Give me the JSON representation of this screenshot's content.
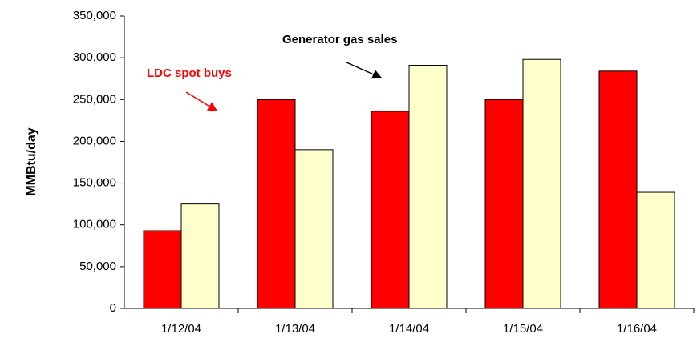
{
  "chart_data": {
    "type": "bar",
    "y_label": "MMBtu/day",
    "categories": [
      "1/12/04",
      "1/13/04",
      "1/14/04",
      "1/15/04",
      "1/16/04"
    ],
    "series": [
      {
        "name": "LDC spot buys",
        "color": "#ff0000",
        "values": [
          93000,
          250000,
          236000,
          250000,
          284000
        ]
      },
      {
        "name": "Generator gas sales",
        "color": "#ffffcc",
        "values": [
          125000,
          190000,
          291000,
          298000,
          139000
        ]
      }
    ],
    "ylim": [
      0,
      350000
    ],
    "yticks": [
      0,
      {
        "value": 50000,
        "label": "50,000"
      },
      {
        "value": 100000,
        "label": "100,000"
      },
      {
        "value": 150000,
        "label": "150,000"
      },
      {
        "value": 200000,
        "label": "200,000"
      },
      {
        "value": 250000,
        "label": "250,000"
      },
      {
        "value": 300000,
        "label": "300,000"
      },
      {
        "value": 350000,
        "label": "350,000"
      }
    ]
  }
}
